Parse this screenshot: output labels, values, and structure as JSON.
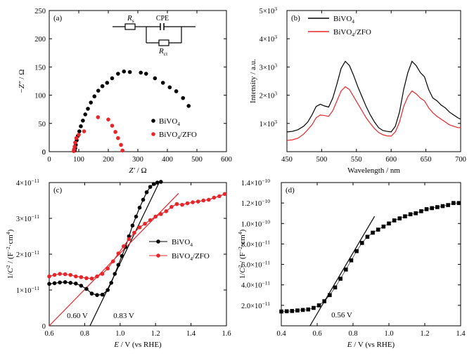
{
  "chart_data": [
    {
      "type": "scatter",
      "panel_label": "(a)",
      "xlabel": "Z′ / Ω",
      "ylabel": "−Z″ / Ω",
      "xlim": [
        0,
        600
      ],
      "ylim": [
        0,
        250
      ],
      "xticks": [
        0,
        100,
        200,
        300,
        400,
        500,
        600
      ],
      "yticks": [
        0,
        50,
        100,
        150,
        200,
        250
      ],
      "legend": {
        "position": "lower-right",
        "entries": [
          "BiVO",
          "BiVO/ZFO"
        ],
        "subscript": "4"
      },
      "circuit": {
        "r1": "R",
        "r1_sub": "s",
        "cpe": "CPE",
        "r2": "R",
        "r2_sub": "ct"
      },
      "series": [
        {
          "name": "BiVO4",
          "color": "#000000",
          "marker": "circle",
          "x": [
            86,
            88,
            90,
            93,
            97,
            102,
            107,
            114,
            122,
            131,
            141,
            153,
            166,
            180,
            196,
            213,
            233,
            253,
            273,
            310,
            328,
            358,
            385,
            408,
            430,
            453,
            472
          ],
          "y": [
            2,
            6,
            12,
            20,
            28,
            36,
            45,
            55,
            66,
            76,
            87,
            98,
            108,
            116,
            122,
            130,
            138,
            142,
            141,
            140,
            138,
            130,
            122,
            114,
            107,
            95,
            81
          ]
        },
        {
          "name": "BiVO4/ZFO",
          "color": "#e8262a",
          "marker": "circle",
          "x": [
            83,
            84,
            86,
            88,
            92,
            100,
            118,
            165,
            200,
            213,
            224,
            233,
            243,
            248
          ],
          "y": [
            1,
            4,
            9,
            16,
            24,
            30,
            36,
            61,
            57,
            46,
            35,
            24,
            12,
            2
          ]
        }
      ]
    },
    {
      "type": "line",
      "panel_label": "(b)",
      "xlabel": "Wavelength / nm",
      "ylabel": "Intensity / a.u.",
      "xlim": [
        450,
        700
      ],
      "ylim": [
        0,
        5000
      ],
      "xticks": [
        450,
        500,
        550,
        600,
        650,
        700
      ],
      "yticks": [
        1000,
        2000,
        3000,
        4000,
        5000
      ],
      "ytick_base": "×10",
      "ytick_exp": "3",
      "legend": {
        "position": "top-left",
        "entries": [
          "BiVO",
          "BiVO/ZFO"
        ],
        "subscript": "4"
      },
      "series": [
        {
          "name": "BiVO4",
          "color": "#000000",
          "x": [
            450,
            458,
            466,
            474,
            480,
            486,
            492,
            498,
            504,
            510,
            516,
            522,
            528,
            534,
            540,
            546,
            552,
            558,
            564,
            570,
            576,
            582,
            588,
            594,
            600,
            606,
            612,
            618,
            624,
            630,
            636,
            642,
            648,
            654,
            660,
            666,
            672,
            678,
            684,
            690,
            696,
            700
          ],
          "y": [
            700,
            720,
            780,
            900,
            1050,
            1300,
            1600,
            1680,
            1620,
            1580,
            1900,
            2400,
            2950,
            3200,
            3050,
            2700,
            2300,
            1950,
            1600,
            1300,
            1050,
            850,
            750,
            720,
            700,
            900,
            1400,
            2200,
            2800,
            3200,
            3050,
            2800,
            2650,
            2200,
            1900,
            1800,
            1650,
            1550,
            1400,
            1300,
            1200,
            1150
          ]
        },
        {
          "name": "BiVO4/ZFO",
          "color": "#e8262a",
          "x": [
            450,
            458,
            466,
            474,
            480,
            486,
            492,
            498,
            504,
            510,
            516,
            522,
            528,
            534,
            540,
            546,
            552,
            558,
            564,
            570,
            576,
            582,
            588,
            594,
            600,
            606,
            612,
            618,
            624,
            630,
            636,
            642,
            648,
            654,
            660,
            666,
            672,
            678,
            684,
            690,
            696,
            700
          ],
          "y": [
            400,
            420,
            480,
            620,
            780,
            950,
            1200,
            1300,
            1280,
            1250,
            1450,
            1800,
            2150,
            2300,
            2200,
            1950,
            1700,
            1450,
            1200,
            1000,
            820,
            680,
            600,
            560,
            550,
            700,
            1050,
            1600,
            1950,
            2150,
            2050,
            1900,
            1800,
            1550,
            1380,
            1250,
            1150,
            1050,
            950,
            900,
            850,
            850
          ]
        }
      ]
    },
    {
      "type": "line",
      "panel_label": "(c)",
      "xlabel": "E / V (vs RHE)",
      "ylabel": "1/C² / (F⁻²·cm⁴)",
      "xlim": [
        0.6,
        1.6
      ],
      "ylim": [
        0,
        4e-11
      ],
      "xticks": [
        0.6,
        0.8,
        1.0,
        1.2,
        1.4,
        1.6
      ],
      "yticks": [
        1e-11,
        2e-11,
        3e-11,
        4e-11
      ],
      "ytick_mant": [
        "1",
        "2",
        "3",
        "4"
      ],
      "ytick_exp": "−11",
      "legend": {
        "position": "center-right",
        "entries": [
          "BiVO",
          "BiVO/ZFO"
        ],
        "subscript": "4"
      },
      "annotations": [
        "0.60 V",
        "0.83 V"
      ],
      "series": [
        {
          "name": "BiVO4",
          "color": "#000000",
          "x": [
            0.6,
            0.63,
            0.66,
            0.69,
            0.72,
            0.75,
            0.78,
            0.81,
            0.84,
            0.87,
            0.9,
            0.93,
            0.95,
            0.97,
            0.99,
            1.01,
            1.03,
            1.05,
            1.07,
            1.09,
            1.11,
            1.13,
            1.15,
            1.17,
            1.19,
            1.21,
            1.23
          ],
          "y": [
            1.17e-11,
            1.19e-11,
            1.21e-11,
            1.22e-11,
            1.2e-11,
            1.18e-11,
            1.12e-11,
            1.03e-11,
            9e-12,
            8.6e-12,
            8.7e-12,
            1e-11,
            1.2e-11,
            1.45e-11,
            1.7e-11,
            1.95e-11,
            2.2e-11,
            2.5e-11,
            2.8e-11,
            3.05e-11,
            3.3e-11,
            3.52e-11,
            3.73e-11,
            3.88e-11,
            3.96e-11,
            4e-11,
            4.02e-11
          ]
        },
        {
          "name": "BiVO4/ZFO",
          "color": "#e8262a",
          "x": [
            0.6,
            0.63,
            0.66,
            0.69,
            0.72,
            0.75,
            0.78,
            0.81,
            0.84,
            0.87,
            0.9,
            0.93,
            0.96,
            0.99,
            1.02,
            1.05,
            1.08,
            1.11,
            1.14,
            1.17,
            1.2,
            1.23,
            1.26,
            1.29,
            1.32,
            1.35,
            1.38,
            1.41,
            1.44,
            1.47,
            1.5,
            1.53,
            1.56,
            1.59
          ],
          "y": [
            1.38e-11,
            1.42e-11,
            1.45e-11,
            1.44e-11,
            1.42e-11,
            1.38e-11,
            1.36e-11,
            1.33e-11,
            1.32e-11,
            1.38e-11,
            1.45e-11,
            1.6e-11,
            1.8e-11,
            2.02e-11,
            2.22e-11,
            2.42e-11,
            2.6e-11,
            2.75e-11,
            2.85e-11,
            2.95e-11,
            3.05e-11,
            3.12e-11,
            3.2e-11,
            3.32e-11,
            3.4e-11,
            3.38e-11,
            3.42e-11,
            3.45e-11,
            3.47e-11,
            3.5e-11,
            3.52e-11,
            3.58e-11,
            3.62e-11,
            3.68e-11
          ]
        }
      ],
      "fits": [
        {
          "color": "#000000",
          "x": [
            0.83,
            1.22
          ],
          "y": [
            0,
            4e-11
          ]
        },
        {
          "color": "#e8262a",
          "x": [
            0.6,
            1.33
          ],
          "y": [
            0,
            3.7e-11
          ]
        }
      ]
    },
    {
      "type": "scatter",
      "panel_label": "(d)",
      "xlabel": "E / V (vs RHE)",
      "ylabel": "1/C² / (F⁻²·cm⁴)",
      "xlim": [
        0.4,
        1.4
      ],
      "ylim": [
        0,
        1.4e-10
      ],
      "xticks": [
        0.4,
        0.6,
        0.8,
        1.0,
        1.2,
        1.4
      ],
      "yticks": [
        2e-11,
        4e-11,
        6e-11,
        8e-11,
        1e-10,
        1.2e-10,
        1.4e-10
      ],
      "ytick_mant": [
        "2.0",
        "4.0",
        "6.0",
        "8.0",
        "1.0",
        "1.2",
        "1.4"
      ],
      "ytick_exps": [
        "−11",
        "−11",
        "−11",
        "−11",
        "−10",
        "−10",
        "−10"
      ],
      "annotations": [
        "0.56 V"
      ],
      "series": [
        {
          "name": "",
          "color": "#000000",
          "marker": "square",
          "x": [
            0.4,
            0.43,
            0.46,
            0.49,
            0.52,
            0.55,
            0.58,
            0.61,
            0.64,
            0.67,
            0.7,
            0.73,
            0.76,
            0.79,
            0.82,
            0.85,
            0.88,
            0.91,
            0.94,
            0.97,
            1.0,
            1.03,
            1.06,
            1.09,
            1.12,
            1.15,
            1.18,
            1.21,
            1.24,
            1.27,
            1.3,
            1.33,
            1.36,
            1.39
          ],
          "y": [
            1.4e-11,
            1.42e-11,
            1.45e-11,
            1.5e-11,
            1.55e-11,
            1.6e-11,
            1.75e-11,
            2e-11,
            2.4e-11,
            3e-11,
            3.75e-11,
            4.6e-11,
            5.5e-11,
            6.4e-11,
            7.3e-11,
            8.1e-11,
            8.7e-11,
            9.1e-11,
            9.4e-11,
            9.7e-11,
            1e-10,
            1.03e-10,
            1.05e-10,
            1.07e-10,
            1.09e-10,
            1.1e-10,
            1.12e-10,
            1.14e-10,
            1.15e-10,
            1.16e-10,
            1.17e-10,
            1.18e-10,
            1.2e-10,
            1.2e-10
          ]
        }
      ],
      "fits": [
        {
          "color": "#000000",
          "x": [
            0.56,
            0.92
          ],
          "y": [
            0,
            1.07e-10
          ]
        }
      ]
    }
  ]
}
